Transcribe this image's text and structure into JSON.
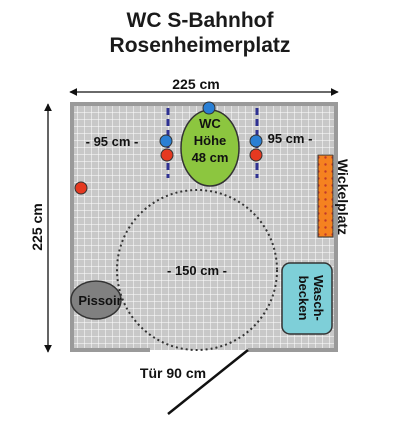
{
  "title": {
    "line1": "WC S-Bahnhof",
    "line2": "Rosenheimerplatz"
  },
  "dimensions": {
    "top_width": "225 cm",
    "left_height": "225 cm",
    "left_clearance": "- 95 cm -",
    "right_clearance": "95 cm -",
    "turning_circle": "- 150 cm -",
    "door": "Tür 90 cm"
  },
  "fixtures": {
    "wc_line1": "WC",
    "wc_line2": "Höhe",
    "wc_line3": "48 cm",
    "changing_table": "Wickelplatz",
    "sink_line1": "Wasch-",
    "sink_line2": "becken",
    "urinal": "Pissoir"
  },
  "colors": {
    "floor_grid": "#c8c8c8",
    "grid_lines": "#ffffff",
    "walls": "#9a9a9a",
    "wc": "#8cc63f",
    "changing_table": "#f58220",
    "sink": "#7ecfd8",
    "urinal": "#808080",
    "grab_bar": "#2e3192",
    "emergency_button": "#e53920",
    "light_switch": "#2a7fd4"
  }
}
